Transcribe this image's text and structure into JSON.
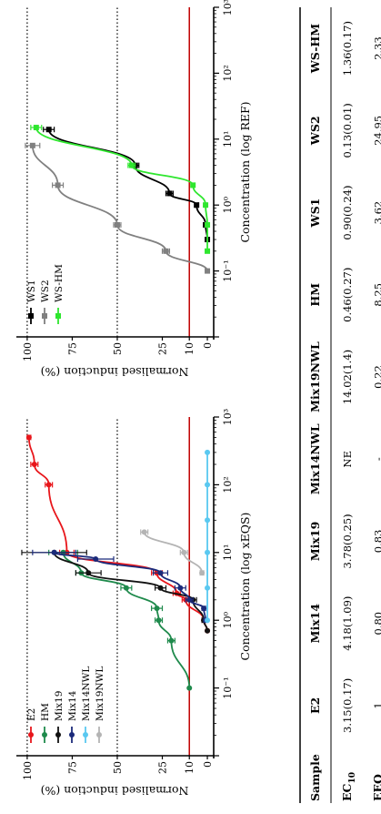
{
  "chart_data": [
    {
      "type": "line",
      "title": "",
      "xlabel": "Concentration (log xEQS)",
      "ylabel": "Normalised induction (%)",
      "x_scale": "log",
      "xlim": [
        0.01,
        1000
      ],
      "ylim": [
        -2,
        105
      ],
      "x_ticks": [
        "10⁻¹",
        "10⁰",
        "10¹",
        "10²",
        "10³"
      ],
      "y_ticks": [
        "0",
        "10",
        "25",
        "50",
        "75",
        "100"
      ],
      "ref_lines": [
        {
          "y": 100,
          "style": "dotted",
          "color": "#000000"
        },
        {
          "y": 50,
          "style": "dotted",
          "color": "#000000"
        },
        {
          "y": 10,
          "style": "solid",
          "color": "#c00000"
        }
      ],
      "legend_position": "top-left",
      "series": [
        {
          "name": "E2",
          "color": "#e8161b",
          "x": [
            0.7,
            1.0,
            2.0,
            2.5,
            5.0,
            10.0,
            100.0,
            200.0,
            500.0
          ],
          "y": [
            0,
            2,
            12,
            17,
            28,
            78,
            88,
            96,
            99
          ],
          "yerr": [
            0,
            1,
            2,
            2,
            3,
            4,
            2,
            2,
            1
          ]
        },
        {
          "name": "HM",
          "color": "#1f8a4c",
          "x": [
            0.1,
            0.5,
            1.0,
            1.5,
            3.0,
            5.0,
            10.0
          ],
          "y": [
            10,
            20,
            27,
            28,
            45,
            70,
            80
          ],
          "yerr": [
            0,
            2,
            2,
            3,
            3,
            3,
            8
          ]
        },
        {
          "name": "Mix19",
          "color": "#111111",
          "x": [
            0.7,
            1.0,
            2.0,
            3.0,
            5.0,
            10.0
          ],
          "y": [
            0,
            2,
            8,
            26,
            66,
            85
          ],
          "yerr": [
            0,
            1,
            2,
            3,
            7,
            18
          ]
        },
        {
          "name": "Mix14",
          "color": "#1b2a7a",
          "x": [
            1.0,
            1.5,
            2.0,
            3.0,
            5.0,
            8.0,
            10.0
          ],
          "y": [
            1,
            2,
            10,
            15,
            26,
            62,
            85
          ],
          "yerr": [
            1,
            1,
            2,
            3,
            4,
            10,
            12
          ]
        },
        {
          "name": "Mix14NWL",
          "color": "#5ac8f0",
          "x": [
            1.0,
            3.0,
            10.0,
            30.0,
            100.0,
            300.0
          ],
          "y": [
            0,
            0,
            0,
            0,
            0,
            0
          ],
          "yerr": [
            0,
            0,
            0,
            0,
            0,
            0
          ]
        },
        {
          "name": "Mix19NWL",
          "color": "#b4b4b4",
          "x": [
            5.0,
            10.0,
            20.0
          ],
          "y": [
            3,
            13,
            35
          ],
          "yerr": [
            1,
            2,
            2
          ]
        }
      ]
    },
    {
      "type": "line",
      "title": "",
      "xlabel": "Concentration (log REF)",
      "ylabel": "Normalised induction (%)",
      "x_scale": "log",
      "xlim": [
        0.01,
        1000
      ],
      "ylim": [
        -2,
        105
      ],
      "x_ticks": [
        "10⁻¹",
        "10⁰",
        "10¹",
        "10²",
        "10³"
      ],
      "y_ticks": [
        "0",
        "10",
        "25",
        "50",
        "75",
        "100"
      ],
      "ref_lines": [
        {
          "y": 100,
          "style": "dotted",
          "color": "#000000"
        },
        {
          "y": 50,
          "style": "dotted",
          "color": "#000000"
        },
        {
          "y": 10,
          "style": "solid",
          "color": "#c00000"
        }
      ],
      "legend_position": "top-left",
      "series": [
        {
          "name": "WS1",
          "color": "#000000",
          "x": [
            0.3,
            0.5,
            1.0,
            1.5,
            4.0,
            14.0
          ],
          "y": [
            0,
            1,
            6,
            21,
            40,
            88
          ],
          "yerr": [
            0,
            0,
            1,
            2,
            2,
            3
          ]
        },
        {
          "name": "WS2",
          "color": "#808080",
          "x": [
            0.1,
            0.2,
            0.5,
            2.0,
            8.0
          ],
          "y": [
            0,
            23,
            50,
            83,
            97
          ],
          "yerr": [
            0,
            2,
            2,
            3,
            4
          ]
        },
        {
          "name": "WS-HM",
          "color": "#2ee62e",
          "x": [
            0.2,
            0.5,
            1.0,
            2.0,
            4.0,
            15.0
          ],
          "y": [
            0,
            0,
            1,
            8,
            42,
            95
          ],
          "yerr": [
            0,
            0,
            0,
            1,
            2,
            3
          ]
        }
      ]
    },
    {
      "type": "table",
      "columns": [
        "Sample",
        "E2",
        "Mix14",
        "Mix19",
        "Mix14NWL",
        "Mix19NWL",
        "HM",
        "WS1",
        "WS2",
        "WS-HM"
      ],
      "rows": [
        {
          "label": "EC10",
          "label_main": "EC",
          "label_sub": "10",
          "values": [
            "3.15(0.17)",
            "4.18(1.09)",
            "3.78(0.25)",
            "NE",
            "14.02(1.4)",
            "0.46(0.27)",
            "0.90(0.24)",
            "0.13(0.01)",
            "1.36(0.17)"
          ]
        },
        {
          "label": "EEQ",
          "label_main": "EEQ",
          "label_sub": "",
          "values": [
            "1",
            "0.80",
            "0.83",
            "-",
            "0.22",
            "8.25",
            "3.62",
            "24.95",
            "2.33"
          ]
        }
      ]
    }
  ]
}
